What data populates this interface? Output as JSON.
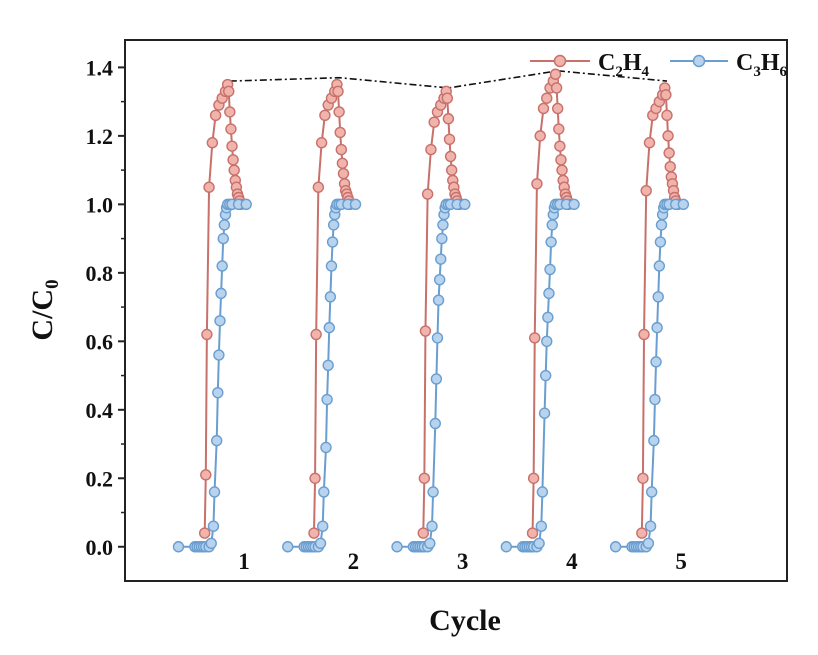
{
  "chart_data": {
    "type": "line",
    "title": "",
    "xlabel": "Cycle",
    "ylabel": {
      "main": "C/C",
      "sub": "0"
    },
    "ylim": [
      -0.1,
      1.48
    ],
    "yticks": [
      "0.0",
      "0.2",
      "0.4",
      "0.6",
      "0.8",
      "1.0",
      "1.2",
      "1.4"
    ],
    "ytick_values": [
      0.0,
      0.2,
      0.4,
      0.6,
      0.8,
      1.0,
      1.2,
      1.4
    ],
    "grid": false,
    "legend": {
      "placement": "top-right",
      "entries": [
        {
          "main": "C",
          "sub1": "2",
          "mid": "H",
          "sub2": "4"
        },
        {
          "main": "C",
          "sub1": "3",
          "mid": "H",
          "sub2": "6"
        }
      ]
    },
    "cycle_labels": [
      "1",
      "2",
      "3",
      "4",
      "5"
    ],
    "x_range": [
      0,
      5.6
    ],
    "series": [
      {
        "name": "C2H4",
        "color": "#c8706a",
        "cycles": [
          {
            "x": [
              0.29,
              0.3,
              0.31,
              0.33,
              0.36,
              0.39,
              0.42,
              0.45,
              0.48,
              0.5,
              0.51,
              0.52,
              0.53,
              0.54,
              0.55,
              0.56,
              0.57,
              0.58,
              0.59,
              0.6,
              0.61,
              0.62
            ],
            "y": [
              0.04,
              0.21,
              0.62,
              1.05,
              1.18,
              1.26,
              1.29,
              1.31,
              1.33,
              1.35,
              1.33,
              1.27,
              1.22,
              1.17,
              1.13,
              1.1,
              1.07,
              1.05,
              1.03,
              1.02,
              1.01,
              1.0
            ]
          },
          {
            "x": [
              1.29,
              1.3,
              1.31,
              1.33,
              1.36,
              1.39,
              1.42,
              1.45,
              1.48,
              1.5,
              1.51,
              1.52,
              1.53,
              1.54,
              1.55,
              1.56,
              1.57,
              1.58,
              1.59,
              1.6,
              1.61,
              1.62
            ],
            "y": [
              0.04,
              0.2,
              0.62,
              1.05,
              1.18,
              1.26,
              1.29,
              1.31,
              1.33,
              1.35,
              1.33,
              1.27,
              1.21,
              1.16,
              1.12,
              1.09,
              1.06,
              1.04,
              1.03,
              1.02,
              1.01,
              1.0
            ]
          },
          {
            "x": [
              2.29,
              2.3,
              2.31,
              2.33,
              2.36,
              2.39,
              2.42,
              2.45,
              2.48,
              2.5,
              2.51,
              2.52,
              2.53,
              2.54,
              2.55,
              2.56,
              2.57,
              2.58,
              2.59,
              2.6,
              2.61,
              2.62
            ],
            "y": [
              0.04,
              0.2,
              0.63,
              1.03,
              1.16,
              1.24,
              1.27,
              1.29,
              1.31,
              1.33,
              1.31,
              1.25,
              1.19,
              1.14,
              1.1,
              1.07,
              1.05,
              1.03,
              1.02,
              1.01,
              1.0,
              1.0
            ]
          },
          {
            "x": [
              3.29,
              3.3,
              3.31,
              3.33,
              3.36,
              3.39,
              3.42,
              3.45,
              3.48,
              3.5,
              3.51,
              3.52,
              3.53,
              3.54,
              3.55,
              3.56,
              3.57,
              3.58,
              3.59,
              3.6,
              3.61,
              3.62
            ],
            "y": [
              0.04,
              0.2,
              0.61,
              1.06,
              1.2,
              1.28,
              1.31,
              1.34,
              1.36,
              1.38,
              1.34,
              1.28,
              1.22,
              1.17,
              1.13,
              1.1,
              1.07,
              1.05,
              1.03,
              1.02,
              1.01,
              1.0
            ]
          },
          {
            "x": [
              4.29,
              4.3,
              4.31,
              4.33,
              4.36,
              4.39,
              4.42,
              4.45,
              4.48,
              4.5,
              4.51,
              4.52,
              4.53,
              4.54,
              4.55,
              4.56,
              4.57,
              4.58,
              4.59,
              4.6,
              4.61,
              4.62
            ],
            "y": [
              0.04,
              0.2,
              0.62,
              1.04,
              1.18,
              1.26,
              1.28,
              1.3,
              1.32,
              1.34,
              1.32,
              1.26,
              1.2,
              1.15,
              1.11,
              1.08,
              1.06,
              1.04,
              1.02,
              1.01,
              1.0,
              1.0
            ]
          }
        ]
      },
      {
        "name": "C3H6",
        "color": "#6a9ed0",
        "cycles": [
          {
            "x": [
              0.05,
              0.2,
              0.22,
              0.24,
              0.26,
              0.28,
              0.3,
              0.33,
              0.35,
              0.37,
              0.38,
              0.4,
              0.41,
              0.42,
              0.43,
              0.44,
              0.45,
              0.46,
              0.47,
              0.48,
              0.49,
              0.5,
              0.52,
              0.54,
              0.6,
              0.67
            ],
            "y": [
              0.0,
              0.0,
              0.0,
              0.0,
              0.0,
              0.0,
              0.0,
              0.0,
              0.01,
              0.06,
              0.16,
              0.31,
              0.45,
              0.56,
              0.66,
              0.74,
              0.82,
              0.9,
              0.94,
              0.97,
              0.99,
              1.0,
              1.0,
              1.0,
              1.0,
              1.0
            ]
          },
          {
            "x": [
              1.05,
              1.2,
              1.22,
              1.24,
              1.26,
              1.28,
              1.3,
              1.33,
              1.35,
              1.37,
              1.38,
              1.4,
              1.41,
              1.42,
              1.43,
              1.44,
              1.45,
              1.46,
              1.47,
              1.48,
              1.49,
              1.5,
              1.52,
              1.54,
              1.6,
              1.67
            ],
            "y": [
              0.0,
              0.0,
              0.0,
              0.0,
              0.0,
              0.0,
              0.0,
              0.0,
              0.01,
              0.06,
              0.16,
              0.29,
              0.43,
              0.53,
              0.64,
              0.73,
              0.82,
              0.89,
              0.94,
              0.97,
              0.99,
              1.0,
              1.0,
              1.0,
              1.0,
              1.0
            ]
          },
          {
            "x": [
              2.05,
              2.2,
              2.22,
              2.24,
              2.26,
              2.28,
              2.3,
              2.33,
              2.35,
              2.37,
              2.38,
              2.4,
              2.41,
              2.42,
              2.43,
              2.44,
              2.45,
              2.46,
              2.47,
              2.48,
              2.49,
              2.5,
              2.52,
              2.54,
              2.6,
              2.67
            ],
            "y": [
              0.0,
              0.0,
              0.0,
              0.0,
              0.0,
              0.0,
              0.0,
              0.0,
              0.01,
              0.06,
              0.16,
              0.36,
              0.49,
              0.61,
              0.72,
              0.78,
              0.84,
              0.9,
              0.94,
              0.97,
              0.99,
              1.0,
              1.0,
              1.0,
              1.0,
              1.0
            ]
          },
          {
            "x": [
              3.05,
              3.2,
              3.22,
              3.24,
              3.26,
              3.28,
              3.3,
              3.33,
              3.35,
              3.37,
              3.38,
              3.4,
              3.41,
              3.42,
              3.43,
              3.44,
              3.45,
              3.46,
              3.47,
              3.48,
              3.49,
              3.5,
              3.52,
              3.54,
              3.6,
              3.67
            ],
            "y": [
              0.0,
              0.0,
              0.0,
              0.0,
              0.0,
              0.0,
              0.0,
              0.0,
              0.01,
              0.06,
              0.16,
              0.39,
              0.5,
              0.6,
              0.67,
              0.74,
              0.81,
              0.89,
              0.94,
              0.97,
              0.99,
              1.0,
              1.0,
              1.0,
              1.0,
              1.0
            ]
          },
          {
            "x": [
              4.05,
              4.2,
              4.22,
              4.24,
              4.26,
              4.28,
              4.3,
              4.33,
              4.35,
              4.37,
              4.38,
              4.4,
              4.41,
              4.42,
              4.43,
              4.44,
              4.45,
              4.46,
              4.47,
              4.48,
              4.49,
              4.5,
              4.52,
              4.54,
              4.6,
              4.67
            ],
            "y": [
              0.0,
              0.0,
              0.0,
              0.0,
              0.0,
              0.0,
              0.0,
              0.0,
              0.01,
              0.06,
              0.16,
              0.31,
              0.43,
              0.54,
              0.64,
              0.73,
              0.82,
              0.89,
              0.94,
              0.97,
              0.99,
              1.0,
              1.0,
              1.0,
              1.0,
              1.0
            ]
          }
        ]
      }
    ],
    "peak_trend": {
      "style": "dash-dot",
      "color": "#111111",
      "x": [
        0.52,
        1.52,
        2.52,
        3.52,
        4.52
      ],
      "y": [
        1.36,
        1.37,
        1.34,
        1.39,
        1.36
      ]
    }
  }
}
